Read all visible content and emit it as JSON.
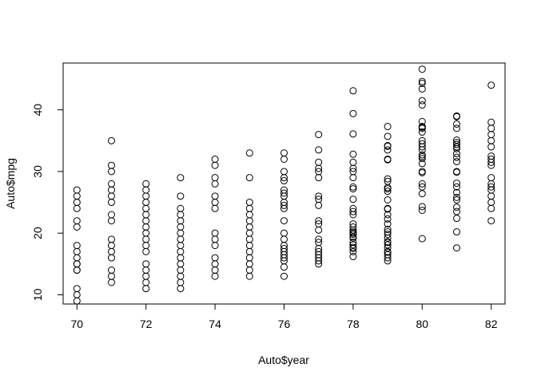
{
  "chart_data": {
    "type": "scatter",
    "title": "",
    "xlabel": "Auto$year",
    "ylabel": "Auto$mpg",
    "xlim": [
      69.6,
      82.4
    ],
    "ylim": [
      8.5,
      47.6
    ],
    "xticks": [
      70,
      72,
      74,
      76,
      78,
      80,
      82
    ],
    "yticks": [
      10,
      20,
      30,
      40
    ],
    "grid": false,
    "legend": "none",
    "marker": "open-circle",
    "color": "#000000",
    "points": [
      [
        70,
        27
      ],
      [
        70,
        26
      ],
      [
        70,
        25
      ],
      [
        70,
        24
      ],
      [
        70,
        22
      ],
      [
        70,
        21
      ],
      [
        70,
        18
      ],
      [
        70,
        17
      ],
      [
        70,
        16
      ],
      [
        70,
        15
      ],
      [
        70,
        14
      ],
      [
        70,
        15
      ],
      [
        70,
        14
      ],
      [
        70,
        11
      ],
      [
        70,
        10
      ],
      [
        70,
        9
      ],
      [
        71,
        35
      ],
      [
        71,
        31
      ],
      [
        71,
        30
      ],
      [
        71,
        28
      ],
      [
        71,
        27
      ],
      [
        71,
        26
      ],
      [
        71,
        25
      ],
      [
        71,
        23
      ],
      [
        71,
        22
      ],
      [
        71,
        19
      ],
      [
        71,
        18
      ],
      [
        71,
        17
      ],
      [
        71,
        16
      ],
      [
        71,
        14
      ],
      [
        71,
        13
      ],
      [
        71,
        12
      ],
      [
        72,
        28
      ],
      [
        72,
        27
      ],
      [
        72,
        26
      ],
      [
        72,
        25
      ],
      [
        72,
        24
      ],
      [
        72,
        23
      ],
      [
        72,
        22
      ],
      [
        72,
        21
      ],
      [
        72,
        20
      ],
      [
        72,
        19
      ],
      [
        72,
        18
      ],
      [
        72,
        17
      ],
      [
        72,
        15
      ],
      [
        72,
        14
      ],
      [
        72,
        13
      ],
      [
        72,
        12
      ],
      [
        72,
        11
      ],
      [
        73,
        29
      ],
      [
        73,
        26
      ],
      [
        73,
        24
      ],
      [
        73,
        23
      ],
      [
        73,
        22
      ],
      [
        73,
        21
      ],
      [
        73,
        20
      ],
      [
        73,
        19
      ],
      [
        73,
        18
      ],
      [
        73,
        17
      ],
      [
        73,
        16
      ],
      [
        73,
        15
      ],
      [
        73,
        14
      ],
      [
        73,
        13
      ],
      [
        73,
        12
      ],
      [
        73,
        11
      ],
      [
        74,
        32
      ],
      [
        74,
        31
      ],
      [
        74,
        29
      ],
      [
        74,
        28
      ],
      [
        74,
        26
      ],
      [
        74,
        25
      ],
      [
        74,
        24
      ],
      [
        74,
        20
      ],
      [
        74,
        19
      ],
      [
        74,
        18
      ],
      [
        74,
        16
      ],
      [
        74,
        15
      ],
      [
        74,
        14
      ],
      [
        74,
        13
      ],
      [
        75,
        33
      ],
      [
        75,
        29
      ],
      [
        75,
        25
      ],
      [
        75,
        24
      ],
      [
        75,
        23
      ],
      [
        75,
        22
      ],
      [
        75,
        21
      ],
      [
        75,
        20
      ],
      [
        75,
        19
      ],
      [
        75,
        18
      ],
      [
        75,
        17
      ],
      [
        75,
        16
      ],
      [
        75,
        15
      ],
      [
        75,
        14
      ],
      [
        75,
        13
      ],
      [
        76,
        33
      ],
      [
        76,
        32
      ],
      [
        76,
        30
      ],
      [
        76,
        29
      ],
      [
        76,
        28.5
      ],
      [
        76,
        27
      ],
      [
        76,
        26.5
      ],
      [
        76,
        26
      ],
      [
        76,
        25
      ],
      [
        76,
        24.5
      ],
      [
        76,
        24
      ],
      [
        76,
        22
      ],
      [
        76,
        20
      ],
      [
        76,
        19
      ],
      [
        76,
        18
      ],
      [
        76,
        17.5
      ],
      [
        76,
        17
      ],
      [
        76,
        16.5
      ],
      [
        76,
        16
      ],
      [
        76,
        15.5
      ],
      [
        76,
        14.5
      ],
      [
        76,
        13
      ],
      [
        77,
        36
      ],
      [
        77,
        33.5
      ],
      [
        77,
        31.5
      ],
      [
        77,
        30.5
      ],
      [
        77,
        30
      ],
      [
        77,
        29
      ],
      [
        77,
        26
      ],
      [
        77,
        25.5
      ],
      [
        77,
        24.5
      ],
      [
        77,
        22
      ],
      [
        77,
        21.5
      ],
      [
        77,
        20.5
      ],
      [
        77,
        19
      ],
      [
        77,
        18.5
      ],
      [
        77,
        17.5
      ],
      [
        77,
        17
      ],
      [
        77,
        16.5
      ],
      [
        77,
        16
      ],
      [
        77,
        15.5
      ],
      [
        77,
        15
      ],
      [
        78,
        43.1
      ],
      [
        78,
        39.4
      ],
      [
        78,
        36.1
      ],
      [
        78,
        32.8
      ],
      [
        78,
        31.5
      ],
      [
        78,
        30.5
      ],
      [
        78,
        30
      ],
      [
        78,
        29
      ],
      [
        78,
        27.5
      ],
      [
        78,
        27.2
      ],
      [
        78,
        25.5
      ],
      [
        78,
        24
      ],
      [
        78,
        23.5
      ],
      [
        78,
        23
      ],
      [
        78,
        21.5
      ],
      [
        78,
        21
      ],
      [
        78,
        20.5
      ],
      [
        78,
        20.2
      ],
      [
        78,
        20
      ],
      [
        78,
        19.8
      ],
      [
        78,
        19.4
      ],
      [
        78,
        19.2
      ],
      [
        78,
        18.5
      ],
      [
        78,
        18.1
      ],
      [
        78,
        17.7
      ],
      [
        78,
        17.5
      ],
      [
        78,
        17
      ],
      [
        78,
        16.2
      ],
      [
        79,
        37.3
      ],
      [
        79,
        35.7
      ],
      [
        79,
        34.2
      ],
      [
        79,
        34.1
      ],
      [
        79,
        33.5
      ],
      [
        79,
        32
      ],
      [
        79,
        31.9
      ],
      [
        79,
        28.8
      ],
      [
        79,
        28.4
      ],
      [
        79,
        27.4
      ],
      [
        79,
        27.2
      ],
      [
        79,
        26.8
      ],
      [
        79,
        25.4
      ],
      [
        79,
        24
      ],
      [
        79,
        23.9
      ],
      [
        79,
        23
      ],
      [
        79,
        22.3
      ],
      [
        79,
        21.5
      ],
      [
        79,
        20.6
      ],
      [
        79,
        20.2
      ],
      [
        79,
        19.8
      ],
      [
        79,
        19.2
      ],
      [
        79,
        18.6
      ],
      [
        79,
        18.5
      ],
      [
        79,
        18.1
      ],
      [
        79,
        17.6
      ],
      [
        79,
        17
      ],
      [
        79,
        16.9
      ],
      [
        79,
        16.5
      ],
      [
        79,
        16
      ],
      [
        79,
        15.5
      ],
      [
        80,
        46.6
      ],
      [
        80,
        44.6
      ],
      [
        80,
        44.3
      ],
      [
        80,
        43.4
      ],
      [
        80,
        41.5
      ],
      [
        80,
        40.8
      ],
      [
        80,
        38.1
      ],
      [
        80,
        37.3
      ],
      [
        80,
        37.2
      ],
      [
        80,
        37
      ],
      [
        80,
        36.4
      ],
      [
        80,
        35
      ],
      [
        80,
        34.5
      ],
      [
        80,
        34
      ],
      [
        80,
        33.5
      ],
      [
        80,
        32.7
      ],
      [
        80,
        32.4
      ],
      [
        80,
        32.1
      ],
      [
        80,
        31.3
      ],
      [
        80,
        30
      ],
      [
        80,
        29.8
      ],
      [
        80,
        28
      ],
      [
        80,
        27.5
      ],
      [
        80,
        26.4
      ],
      [
        80,
        24.3
      ],
      [
        80,
        23.7
      ],
      [
        80,
        19.1
      ],
      [
        81,
        39
      ],
      [
        81,
        38.9
      ],
      [
        81,
        37.7
      ],
      [
        81,
        37
      ],
      [
        81,
        35.1
      ],
      [
        81,
        34.7
      ],
      [
        81,
        34.4
      ],
      [
        81,
        34
      ],
      [
        81,
        33.7
      ],
      [
        81,
        32.9
      ],
      [
        81,
        32.3
      ],
      [
        81,
        31.6
      ],
      [
        81,
        30
      ],
      [
        81,
        29.9
      ],
      [
        81,
        28.1
      ],
      [
        81,
        27.5
      ],
      [
        81,
        26.6
      ],
      [
        81,
        25.8
      ],
      [
        81,
        25.4
      ],
      [
        81,
        24.2
      ],
      [
        81,
        23.5
      ],
      [
        81,
        22.4
      ],
      [
        81,
        20.2
      ],
      [
        81,
        17.6
      ],
      [
        82,
        44
      ],
      [
        82,
        38
      ],
      [
        82,
        37
      ],
      [
        82,
        36
      ],
      [
        82,
        35
      ],
      [
        82,
        34
      ],
      [
        82,
        32.5
      ],
      [
        82,
        32
      ],
      [
        82,
        31.5
      ],
      [
        82,
        31
      ],
      [
        82,
        29
      ],
      [
        82,
        28
      ],
      [
        82,
        27.5
      ],
      [
        82,
        27
      ],
      [
        82,
        26
      ],
      [
        82,
        25
      ],
      [
        82,
        24
      ],
      [
        82,
        22
      ]
    ]
  }
}
